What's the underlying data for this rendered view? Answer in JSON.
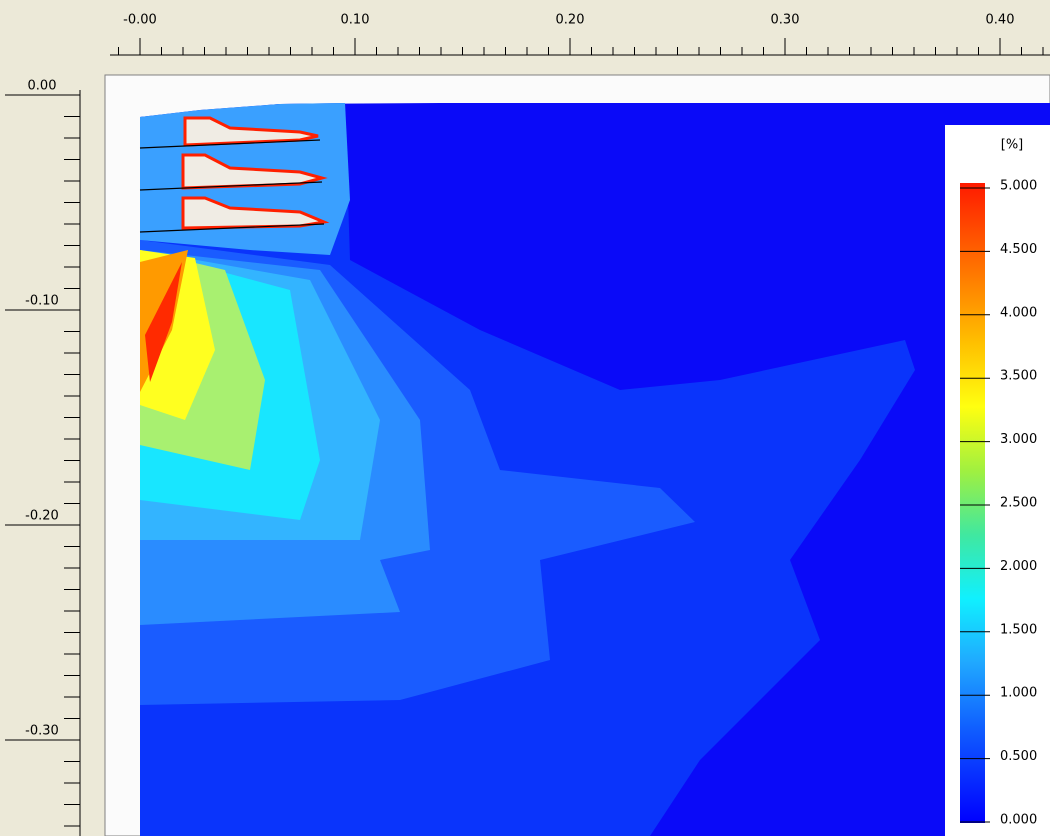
{
  "rulers": {
    "top": [
      "-0.00",
      "0.10",
      "0.20",
      "0.30",
      "0.40"
    ],
    "left": [
      "0.00",
      "-0.10",
      "-0.20",
      "-0.30"
    ]
  },
  "legend": {
    "unit": "[%]",
    "labels": [
      "5.000",
      "4.500",
      "4.000",
      "3.500",
      "3.000",
      "2.500",
      "2.000",
      "1.500",
      "1.000",
      "0.500",
      "0.000"
    ]
  }
}
